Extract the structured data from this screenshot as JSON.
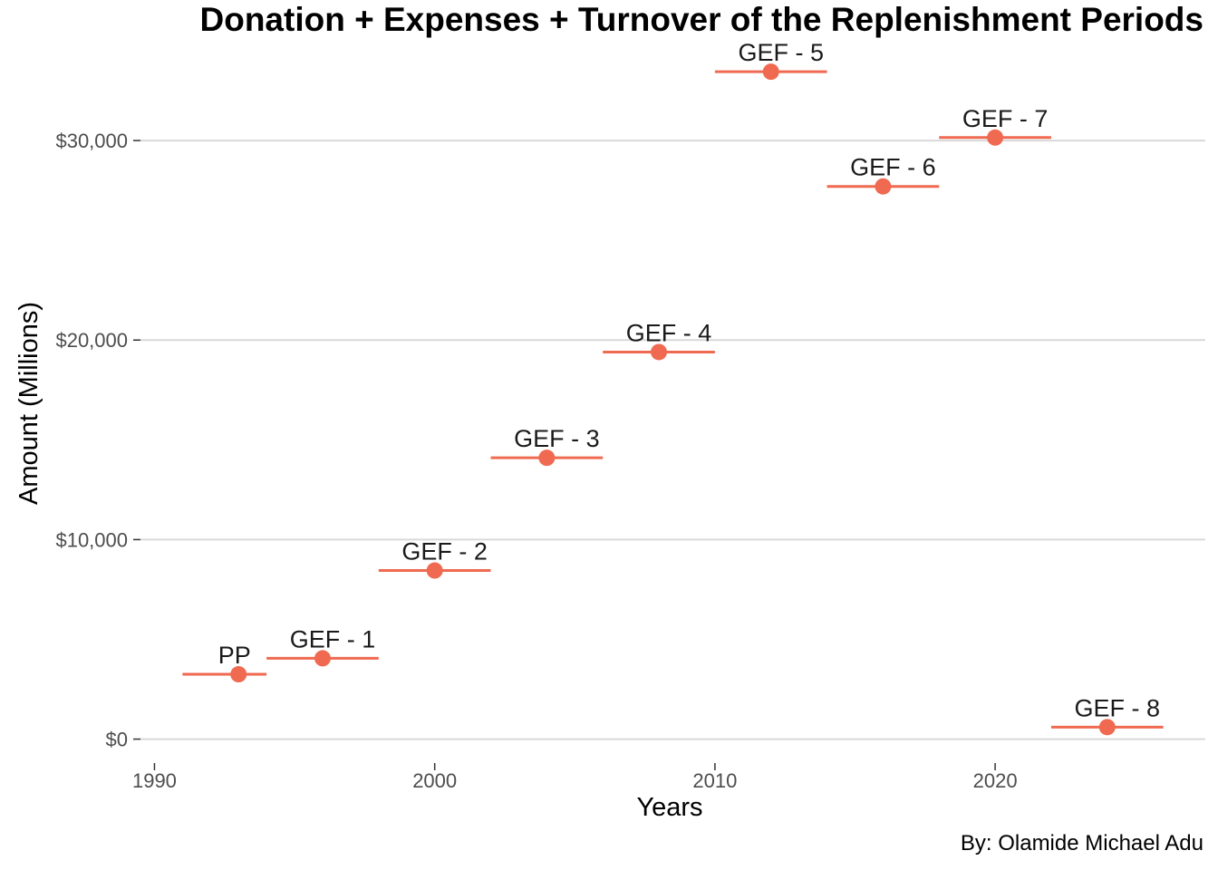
{
  "chart_data": {
    "type": "scatter",
    "title": "Donation + Expenses + Turnover of the Replenishment Periods",
    "xlabel": "Years",
    "ylabel": "Amount (Millions)",
    "caption": "By: Olamide Michael Adu",
    "xlim": [
      1989.5,
      2027.5
    ],
    "ylim": [
      -1200,
      35000
    ],
    "x_ticks": [
      1990,
      2000,
      2010,
      2020
    ],
    "y_ticks": [
      0,
      10000,
      20000,
      30000
    ],
    "y_tick_labels": [
      "$0",
      "$10,000",
      "$20,000",
      "$30,000"
    ],
    "grid": "horizontal major",
    "legend": "none",
    "point_color": "#ef6a50",
    "series": [
      {
        "points": [
          {
            "label": "PP",
            "x": 1993,
            "y": 3250,
            "start": 1991,
            "end": 1994
          },
          {
            "label": "GEF - 1",
            "x": 1996,
            "y": 4050,
            "start": 1994,
            "end": 1998
          },
          {
            "label": "GEF - 2",
            "x": 2000,
            "y": 8450,
            "start": 1998,
            "end": 2002
          },
          {
            "label": "GEF - 3",
            "x": 2004,
            "y": 14100,
            "start": 2002,
            "end": 2006
          },
          {
            "label": "GEF - 4",
            "x": 2008,
            "y": 19400,
            "start": 2006,
            "end": 2010
          },
          {
            "label": "GEF - 5",
            "x": 2012,
            "y": 33450,
            "start": 2010,
            "end": 2014
          },
          {
            "label": "GEF - 6",
            "x": 2016,
            "y": 27700,
            "start": 2014,
            "end": 2018
          },
          {
            "label": "GEF - 7",
            "x": 2020,
            "y": 30150,
            "start": 2018,
            "end": 2022
          },
          {
            "label": "GEF - 8",
            "x": 2024,
            "y": 600,
            "start": 2022,
            "end": 2026
          }
        ]
      }
    ]
  }
}
